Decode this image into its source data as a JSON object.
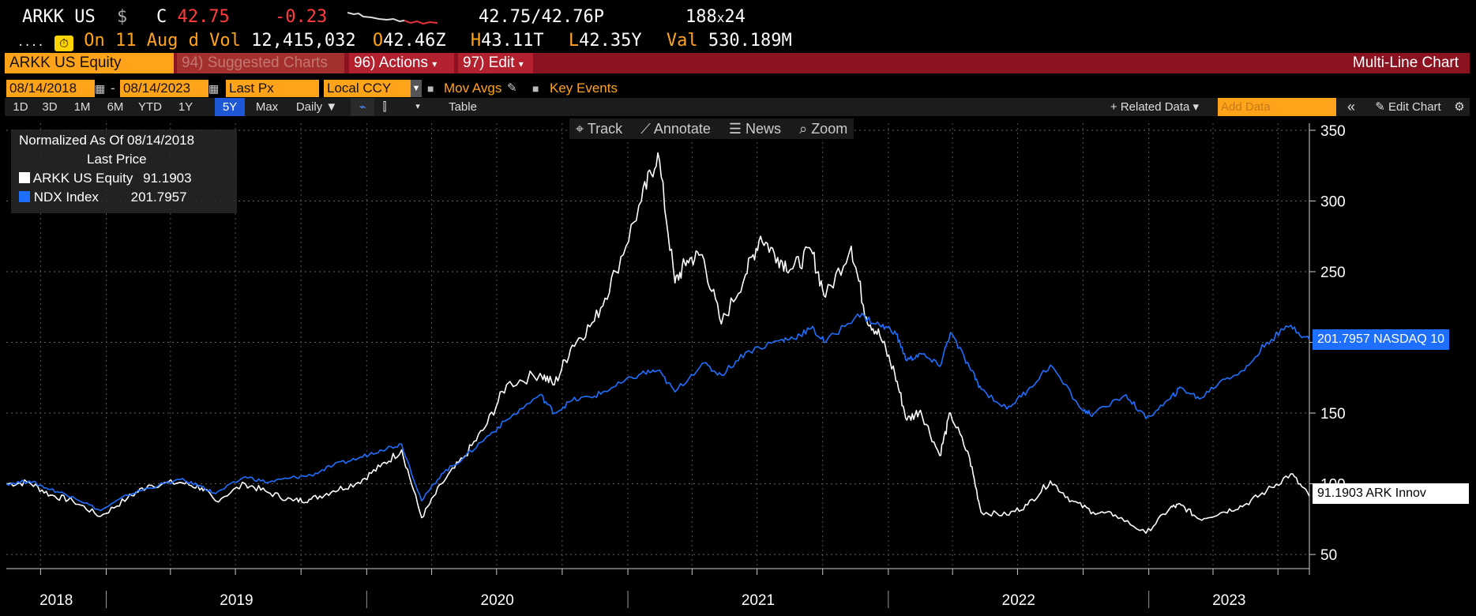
{
  "quote": {
    "ticker": "ARKK US",
    "currency_symbol": "$",
    "c_label": "C",
    "last_price": "42.75",
    "change": "-0.23",
    "bid_ask": "42.75/42.76",
    "bid_ask_suffix": "P",
    "size": "188",
    "size_sep": "x",
    "size2": "24",
    "line2_prefix": "....",
    "as_of": "On 11 Aug d",
    "vol_label": "Vol",
    "vol": "12,415,032",
    "open_label": "O",
    "open": "42.46",
    "open_suffix": "Z",
    "high_label": "H",
    "high": "43.11",
    "high_suffix": "T",
    "low_label": "L",
    "low": "42.35",
    "low_suffix": "Y",
    "val_label": "Val",
    "val": "530.189M"
  },
  "titlebar": {
    "security": "ARKK US Equity",
    "suggested": "94) Suggested Charts",
    "actions": "96) Actions",
    "edit": "97) Edit",
    "chart_type": "Multi-Line Chart"
  },
  "controls": {
    "start_date": "08/14/2018",
    "dash": "-",
    "end_date": "08/14/2023",
    "field": "Last Px",
    "currency": "Local CCY",
    "mov_avgs": "Mov Avgs",
    "key_events": "Key Events"
  },
  "rangebar": {
    "ranges": [
      "1D",
      "3D",
      "1M",
      "6M",
      "YTD",
      "1Y",
      "5Y",
      "Max"
    ],
    "selected": "5Y",
    "frequency": "Daily ▼",
    "table": "Table",
    "related": "+ Related Data ▾",
    "add_data_placeholder": "Add Data",
    "edit_chart": "Edit Chart",
    "collapse": "«"
  },
  "chart_toolbar": {
    "track": "Track",
    "annotate": "Annotate",
    "news": "News",
    "zoom": "Zoom"
  },
  "legend": {
    "title1": "Normalized As Of 08/14/2018",
    "title2": "Last Price",
    "items": [
      {
        "name": "ARKK US Equity",
        "value": "91.1903",
        "color": "#ffffff"
      },
      {
        "name": "NDX Index",
        "value": "201.7957",
        "color": "#1f6fff"
      }
    ]
  },
  "tags": {
    "ndx": "201.7957 NASDAQ 10",
    "arkk": "91.1903  ARK Innov"
  },
  "chart_data": {
    "type": "line",
    "normalized_base_date": "08/14/2018",
    "y_ticks": [
      50,
      100,
      150,
      200,
      250,
      300,
      350
    ],
    "y_tick_labels": [
      "50",
      "100",
      "150",
      "200",
      "250",
      "300",
      "350"
    ],
    "ylim": [
      40,
      355
    ],
    "x_labels": [
      "2018",
      "2019",
      "2020",
      "2021",
      "2022",
      "2023"
    ],
    "x_range": [
      "2018-08-14",
      "2023-08-14"
    ],
    "grid": true,
    "series": [
      {
        "name": "ARKK US Equity",
        "color": "#ffffff",
        "points": [
          [
            "2018-08-14",
            100
          ],
          [
            "2018-09-15",
            101
          ],
          [
            "2018-10-15",
            92
          ],
          [
            "2018-11-15",
            88
          ],
          [
            "2018-12-24",
            77
          ],
          [
            "2019-01-31",
            90
          ],
          [
            "2019-03-01",
            99
          ],
          [
            "2019-04-15",
            101
          ],
          [
            "2019-05-15",
            97
          ],
          [
            "2019-06-03",
            88
          ],
          [
            "2019-07-15",
            100
          ],
          [
            "2019-08-15",
            94
          ],
          [
            "2019-09-20",
            88
          ],
          [
            "2019-10-15",
            89
          ],
          [
            "2019-11-15",
            95
          ],
          [
            "2019-12-20",
            101
          ],
          [
            "2020-01-20",
            112
          ],
          [
            "2020-02-19",
            124
          ],
          [
            "2020-03-18",
            76
          ],
          [
            "2020-04-15",
            100
          ],
          [
            "2020-05-15",
            118
          ],
          [
            "2020-06-15",
            140
          ],
          [
            "2020-07-15",
            170
          ],
          [
            "2020-08-31",
            178
          ],
          [
            "2020-09-20",
            170
          ],
          [
            "2020-10-15",
            198
          ],
          [
            "2020-11-15",
            215
          ],
          [
            "2020-12-15",
            250
          ],
          [
            "2021-01-20",
            300
          ],
          [
            "2021-02-12",
            334
          ],
          [
            "2021-03-08",
            242
          ],
          [
            "2021-03-25",
            258
          ],
          [
            "2021-04-15",
            262
          ],
          [
            "2021-05-12",
            213
          ],
          [
            "2021-06-15",
            248
          ],
          [
            "2021-07-06",
            275
          ],
          [
            "2021-07-30",
            260
          ],
          [
            "2021-08-20",
            252
          ],
          [
            "2021-09-15",
            265
          ],
          [
            "2021-10-05",
            232
          ],
          [
            "2021-11-10",
            268
          ],
          [
            "2021-12-01",
            218
          ],
          [
            "2021-12-20",
            205
          ],
          [
            "2022-01-10",
            178
          ],
          [
            "2022-01-27",
            145
          ],
          [
            "2022-02-15",
            152
          ],
          [
            "2022-03-14",
            120
          ],
          [
            "2022-03-29",
            150
          ],
          [
            "2022-04-25",
            118
          ],
          [
            "2022-05-11",
            80
          ],
          [
            "2022-06-16",
            78
          ],
          [
            "2022-07-15",
            85
          ],
          [
            "2022-08-16",
            102
          ],
          [
            "2022-09-15",
            88
          ],
          [
            "2022-10-15",
            80
          ],
          [
            "2022-11-15",
            78
          ],
          [
            "2022-12-28",
            65
          ],
          [
            "2023-01-31",
            83
          ],
          [
            "2023-02-15",
            85
          ],
          [
            "2023-03-13",
            75
          ],
          [
            "2023-04-15",
            80
          ],
          [
            "2023-05-15",
            85
          ],
          [
            "2023-06-15",
            95
          ],
          [
            "2023-07-19",
            107
          ],
          [
            "2023-08-14",
            91.19
          ]
        ]
      },
      {
        "name": "NDX Index",
        "color": "#1f6fff",
        "points": [
          [
            "2018-08-14",
            100
          ],
          [
            "2018-09-15",
            102
          ],
          [
            "2018-10-15",
            96
          ],
          [
            "2018-11-15",
            91
          ],
          [
            "2018-12-24",
            81
          ],
          [
            "2019-01-31",
            92
          ],
          [
            "2019-03-01",
            97
          ],
          [
            "2019-04-15",
            103
          ],
          [
            "2019-05-15",
            98
          ],
          [
            "2019-06-03",
            93
          ],
          [
            "2019-07-15",
            105
          ],
          [
            "2019-08-15",
            101
          ],
          [
            "2019-09-15",
            104
          ],
          [
            "2019-10-15",
            106
          ],
          [
            "2019-11-15",
            113
          ],
          [
            "2019-12-20",
            118
          ],
          [
            "2020-01-20",
            124
          ],
          [
            "2020-02-19",
            128
          ],
          [
            "2020-03-18",
            88
          ],
          [
            "2020-04-15",
            107
          ],
          [
            "2020-05-15",
            118
          ],
          [
            "2020-06-15",
            132
          ],
          [
            "2020-07-15",
            145
          ],
          [
            "2020-08-31",
            163
          ],
          [
            "2020-09-20",
            150
          ],
          [
            "2020-10-15",
            159
          ],
          [
            "2020-11-15",
            162
          ],
          [
            "2020-12-15",
            169
          ],
          [
            "2021-01-20",
            178
          ],
          [
            "2021-02-12",
            180
          ],
          [
            "2021-03-08",
            165
          ],
          [
            "2021-04-15",
            185
          ],
          [
            "2021-05-12",
            177
          ],
          [
            "2021-06-15",
            193
          ],
          [
            "2021-07-30",
            201
          ],
          [
            "2021-08-20",
            203
          ],
          [
            "2021-09-15",
            210
          ],
          [
            "2021-10-05",
            200
          ],
          [
            "2021-11-19",
            220
          ],
          [
            "2021-12-20",
            212
          ],
          [
            "2022-01-10",
            208
          ],
          [
            "2022-01-27",
            187
          ],
          [
            "2022-02-15",
            192
          ],
          [
            "2022-03-14",
            183
          ],
          [
            "2022-03-29",
            207
          ],
          [
            "2022-04-25",
            182
          ],
          [
            "2022-05-11",
            167
          ],
          [
            "2022-06-16",
            153
          ],
          [
            "2022-07-15",
            166
          ],
          [
            "2022-08-16",
            184
          ],
          [
            "2022-09-30",
            152
          ],
          [
            "2022-10-15",
            149
          ],
          [
            "2022-11-30",
            163
          ],
          [
            "2022-12-28",
            146
          ],
          [
            "2023-01-31",
            160
          ],
          [
            "2023-02-15",
            168
          ],
          [
            "2023-03-13",
            160
          ],
          [
            "2023-04-15",
            174
          ],
          [
            "2023-05-15",
            180
          ],
          [
            "2023-06-15",
            200
          ],
          [
            "2023-07-19",
            212
          ],
          [
            "2023-08-14",
            201.8
          ]
        ]
      }
    ]
  }
}
